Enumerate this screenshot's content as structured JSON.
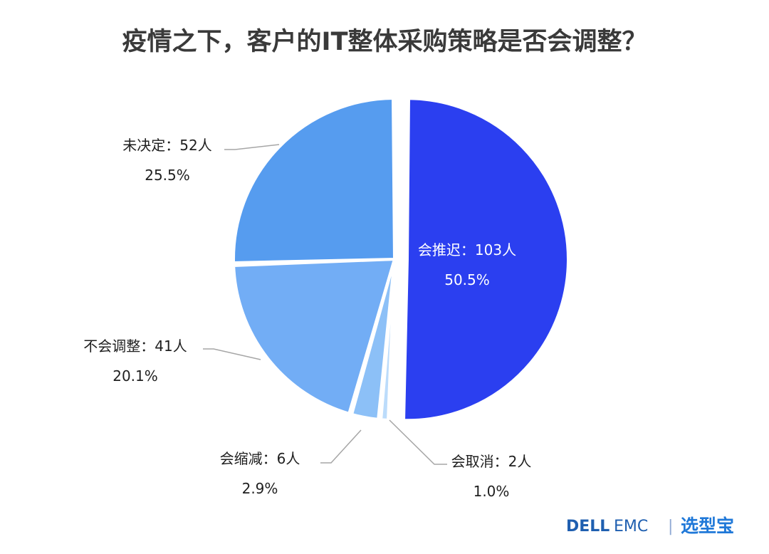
{
  "chart_data": {
    "type": "pie",
    "title": "疫情之下，客户的IT整体采购策略是否会调整？",
    "slices": [
      {
        "label": "会推迟：103人",
        "value": 103,
        "percent": "50.5%",
        "color": "#2b3ff0",
        "exploded": true,
        "label_inside": true,
        "name_key": "postpone"
      },
      {
        "label": "会取消：2人",
        "value": 2,
        "percent": "1.0%",
        "color": "#bcdcfb",
        "exploded": false,
        "label_inside": false,
        "name_key": "cancel"
      },
      {
        "label": "会缩减：6人",
        "value": 6,
        "percent": "2.9%",
        "color": "#8cc0f7",
        "exploded": false,
        "label_inside": false,
        "name_key": "reduce"
      },
      {
        "label": "不会调整：41人",
        "value": 41,
        "percent": "20.1%",
        "color": "#72adf5",
        "exploded": false,
        "label_inside": false,
        "name_key": "no-change"
      },
      {
        "label": "未决定：52人",
        "value": 52,
        "percent": "25.5%",
        "color": "#569cef",
        "exploded": false,
        "label_inside": false,
        "name_key": "undecided"
      }
    ]
  },
  "branding": {
    "dell": "DELL",
    "emc": "EMC",
    "separator": "|",
    "xuanxingbao": "选型宝"
  }
}
